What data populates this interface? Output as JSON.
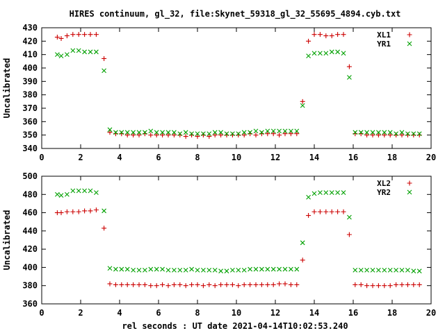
{
  "figure": {
    "title": "HIRES continuum, gl_32, file:Skynet_59318_gl_32_55695_4894.cyb.txt",
    "xlabel": "rel seconds : UT date 2021-04-14T10:02:53.240"
  },
  "chart_data": [
    {
      "type": "scatter",
      "ylabel": "Uncalibrated",
      "xlim": [
        0,
        20
      ],
      "ylim": [
        340,
        430
      ],
      "xticks": [
        "0",
        "2",
        "4",
        "6",
        "8",
        "10",
        "12",
        "14",
        "16",
        "18",
        "20"
      ],
      "yticks": [
        "340",
        "350",
        "360",
        "370",
        "380",
        "390",
        "400",
        "410",
        "420",
        "430"
      ],
      "legend_position": "top-right",
      "series": [
        {
          "name": "XL1",
          "marker": "plus",
          "color": "#cc0000",
          "x": [
            0.8,
            1.0,
            1.3,
            1.6,
            1.9,
            2.2,
            2.5,
            2.8,
            3.2,
            3.5,
            3.8,
            4.1,
            4.4,
            4.7,
            5.0,
            5.3,
            5.6,
            5.9,
            6.2,
            6.5,
            6.8,
            7.1,
            7.4,
            7.7,
            8.0,
            8.3,
            8.6,
            8.9,
            9.2,
            9.5,
            9.8,
            10.1,
            10.4,
            10.7,
            11.0,
            11.3,
            11.6,
            11.9,
            12.2,
            12.5,
            12.8,
            13.1,
            13.4,
            13.7,
            14.0,
            14.3,
            14.6,
            14.9,
            15.2,
            15.5,
            15.8,
            16.1,
            16.4,
            16.7,
            17.0,
            17.3,
            17.6,
            17.9,
            18.2,
            18.5,
            18.8,
            19.1,
            19.4
          ],
          "y": [
            423,
            422,
            424,
            425,
            425,
            425,
            425,
            425,
            407,
            352,
            351,
            351,
            350,
            350,
            350,
            351,
            350,
            350,
            350,
            350,
            350,
            350,
            349,
            350,
            349,
            350,
            349,
            350,
            350,
            350,
            350,
            350,
            350,
            351,
            350,
            351,
            351,
            351,
            350,
            351,
            351,
            351,
            375,
            420,
            425,
            425,
            424,
            424,
            425,
            425,
            401,
            351,
            351,
            350,
            350,
            350,
            350,
            350,
            350,
            350,
            350,
            350,
            350
          ]
        },
        {
          "name": "YR1",
          "marker": "cross",
          "color": "#00a000",
          "x": [
            0.8,
            1.0,
            1.3,
            1.6,
            1.9,
            2.2,
            2.5,
            2.8,
            3.2,
            3.5,
            3.8,
            4.1,
            4.4,
            4.7,
            5.0,
            5.3,
            5.6,
            5.9,
            6.2,
            6.5,
            6.8,
            7.1,
            7.4,
            7.7,
            8.0,
            8.3,
            8.6,
            8.9,
            9.2,
            9.5,
            9.8,
            10.1,
            10.4,
            10.7,
            11.0,
            11.3,
            11.6,
            11.9,
            12.2,
            12.5,
            12.8,
            13.1,
            13.4,
            13.7,
            14.0,
            14.3,
            14.6,
            14.9,
            15.2,
            15.5,
            15.8,
            16.1,
            16.4,
            16.7,
            17.0,
            17.3,
            17.6,
            17.9,
            18.2,
            18.5,
            18.8,
            19.1,
            19.4
          ],
          "y": [
            410,
            409,
            410,
            413,
            413,
            412,
            412,
            412,
            398,
            354,
            352,
            352,
            352,
            352,
            352,
            352,
            353,
            352,
            352,
            352,
            352,
            351,
            352,
            351,
            351,
            351,
            351,
            352,
            352,
            351,
            351,
            351,
            352,
            352,
            353,
            352,
            353,
            353,
            353,
            353,
            353,
            353,
            372,
            409,
            411,
            411,
            411,
            412,
            412,
            411,
            393,
            352,
            352,
            352,
            352,
            352,
            352,
            352,
            351,
            352,
            351,
            351,
            351
          ]
        }
      ]
    },
    {
      "type": "scatter",
      "ylabel": "Uncalibrated",
      "xlim": [
        0,
        20
      ],
      "ylim": [
        360,
        500
      ],
      "xticks": [
        "0",
        "2",
        "4",
        "6",
        "8",
        "10",
        "12",
        "14",
        "16",
        "18",
        "20"
      ],
      "yticks": [
        "360",
        "380",
        "400",
        "420",
        "440",
        "460",
        "480",
        "500"
      ],
      "legend_position": "top-right",
      "series": [
        {
          "name": "XL2",
          "marker": "plus",
          "color": "#cc0000",
          "x": [
            0.8,
            1.0,
            1.3,
            1.6,
            1.9,
            2.2,
            2.5,
            2.8,
            3.2,
            3.5,
            3.8,
            4.1,
            4.4,
            4.7,
            5.0,
            5.3,
            5.6,
            5.9,
            6.2,
            6.5,
            6.8,
            7.1,
            7.4,
            7.7,
            8.0,
            8.3,
            8.6,
            8.9,
            9.2,
            9.5,
            9.8,
            10.1,
            10.4,
            10.7,
            11.0,
            11.3,
            11.6,
            11.9,
            12.2,
            12.5,
            12.8,
            13.1,
            13.4,
            13.7,
            14.0,
            14.3,
            14.6,
            14.9,
            15.2,
            15.5,
            15.8,
            16.1,
            16.4,
            16.7,
            17.0,
            17.3,
            17.6,
            17.9,
            18.2,
            18.5,
            18.8,
            19.1,
            19.4
          ],
          "y": [
            460,
            460,
            461,
            461,
            461,
            462,
            462,
            463,
            443,
            382,
            381,
            381,
            381,
            381,
            381,
            381,
            380,
            380,
            381,
            380,
            381,
            381,
            380,
            381,
            381,
            380,
            381,
            380,
            381,
            381,
            381,
            380,
            381,
            381,
            381,
            381,
            381,
            381,
            382,
            382,
            381,
            381,
            408,
            457,
            461,
            461,
            461,
            461,
            461,
            461,
            436,
            381,
            381,
            380,
            380,
            380,
            380,
            380,
            381,
            381,
            381,
            381,
            381
          ]
        },
        {
          "name": "YR2",
          "marker": "cross",
          "color": "#00a000",
          "x": [
            0.8,
            1.0,
            1.3,
            1.6,
            1.9,
            2.2,
            2.5,
            2.8,
            3.2,
            3.5,
            3.8,
            4.1,
            4.4,
            4.7,
            5.0,
            5.3,
            5.6,
            5.9,
            6.2,
            6.5,
            6.8,
            7.1,
            7.4,
            7.7,
            8.0,
            8.3,
            8.6,
            8.9,
            9.2,
            9.5,
            9.8,
            10.1,
            10.4,
            10.7,
            11.0,
            11.3,
            11.6,
            11.9,
            12.2,
            12.5,
            12.8,
            13.1,
            13.4,
            13.7,
            14.0,
            14.3,
            14.6,
            14.9,
            15.2,
            15.5,
            15.8,
            16.1,
            16.4,
            16.7,
            17.0,
            17.3,
            17.6,
            17.9,
            18.2,
            18.5,
            18.8,
            19.1,
            19.4
          ],
          "y": [
            480,
            479,
            480,
            484,
            484,
            484,
            484,
            482,
            462,
            399,
            398,
            398,
            398,
            397,
            397,
            397,
            398,
            398,
            398,
            397,
            397,
            397,
            397,
            398,
            397,
            397,
            397,
            397,
            396,
            396,
            397,
            397,
            397,
            398,
            398,
            398,
            398,
            398,
            398,
            398,
            398,
            398,
            427,
            477,
            481,
            482,
            482,
            482,
            482,
            482,
            455,
            397,
            397,
            397,
            397,
            397,
            397,
            397,
            397,
            397,
            397,
            396,
            396
          ]
        }
      ]
    }
  ]
}
